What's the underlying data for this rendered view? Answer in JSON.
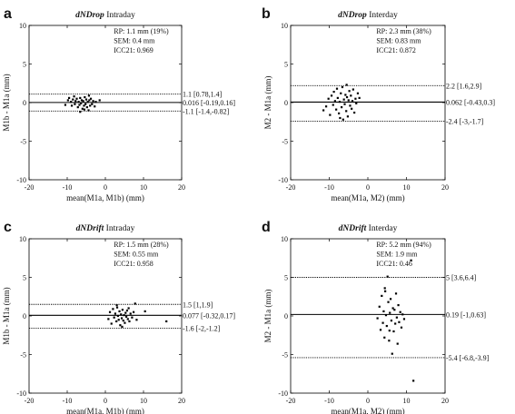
{
  "chart_data": [
    {
      "type": "scatter",
      "panel_letter": "a",
      "title_italic": "dNDrop",
      "title_rest": "Intraday",
      "xlabel": "mean(M1a, M1b) (mm)",
      "ylabel": "M1b - M1a (mm)",
      "xlim": [
        -20,
        20
      ],
      "ylim": [
        -10,
        10
      ],
      "xticks": [
        -20,
        -10,
        0,
        10,
        20
      ],
      "yticks": [
        -10,
        -5,
        0,
        5,
        10
      ],
      "stats": [
        "RP: 1.1 mm (19%)",
        "SEM: 0.4 mm",
        "ICC21: 0.969"
      ],
      "lines": [
        {
          "y": 1.1,
          "label": "1.1 [0.78,1.4]",
          "style": "dotted"
        },
        {
          "y": 0.016,
          "label": "0.016 [-0.19,0.16]",
          "style": "solid"
        },
        {
          "y": -1.1,
          "label": "-1.1 [-1.4,-0.82]",
          "style": "dotted"
        }
      ],
      "points": [
        [
          -10.5,
          -0.3
        ],
        [
          -9.8,
          0.3
        ],
        [
          -9.5,
          0.6
        ],
        [
          -9.0,
          0.1
        ],
        [
          -8.8,
          -0.4
        ],
        [
          -8.5,
          0.4
        ],
        [
          -8.2,
          0.8
        ],
        [
          -8.0,
          -0.2
        ],
        [
          -7.8,
          0.2
        ],
        [
          -7.5,
          0.5
        ],
        [
          -7.2,
          -0.6
        ],
        [
          -7.0,
          0.1
        ],
        [
          -6.8,
          -0.3
        ],
        [
          -6.6,
          0.6
        ],
        [
          -6.4,
          -0.1
        ],
        [
          -6.2,
          0.3
        ],
        [
          -6.0,
          -0.8
        ],
        [
          -5.8,
          0.2
        ],
        [
          -5.6,
          -0.4
        ],
        [
          -5.4,
          0.7
        ],
        [
          -5.2,
          -0.2
        ],
        [
          -5.0,
          0.4
        ],
        [
          -4.8,
          -0.6
        ],
        [
          -4.6,
          0.1
        ],
        [
          -4.4,
          -1.0
        ],
        [
          -4.2,
          0.3
        ],
        [
          -4.0,
          -0.4
        ],
        [
          -3.8,
          0.5
        ],
        [
          -3.5,
          -0.2
        ],
        [
          -3.2,
          0.2
        ],
        [
          -2.8,
          -0.5
        ],
        [
          -2.5,
          0.1
        ],
        [
          -1.5,
          0.3
        ],
        [
          -6.6,
          -1.2
        ],
        [
          -5.5,
          -0.9
        ],
        [
          -4.3,
          0.9
        ]
      ]
    },
    {
      "type": "scatter",
      "panel_letter": "b",
      "title_italic": "dNDrop",
      "title_rest": "Interday",
      "xlabel": "mean(M1a, M2) (mm)",
      "ylabel": "M2 - M1a (mm)",
      "xlim": [
        -20,
        20
      ],
      "ylim": [
        -10,
        10
      ],
      "xticks": [
        -20,
        -10,
        0,
        10,
        20
      ],
      "yticks": [
        -10,
        -5,
        0,
        5,
        10
      ],
      "stats": [
        "RP: 2.3 mm (38%)",
        "SEM: 0.83 mm",
        "ICC21: 0.872"
      ],
      "lines": [
        {
          "y": 2.2,
          "label": "2.2 [1.6,2.9]",
          "style": "dotted"
        },
        {
          "y": 0.062,
          "label": "0.062 [-0.43,0.3]",
          "style": "solid"
        },
        {
          "y": -2.4,
          "label": "-2.4 [-3,-1.7]",
          "style": "dotted"
        }
      ],
      "points": [
        [
          -11.5,
          -1.0
        ],
        [
          -10.8,
          -0.5
        ],
        [
          -10.2,
          0.5
        ],
        [
          -9.8,
          -1.6
        ],
        [
          -9.4,
          0.9
        ],
        [
          -9.0,
          -0.3
        ],
        [
          -8.8,
          1.4
        ],
        [
          -8.5,
          0.2
        ],
        [
          -8.2,
          -0.9
        ],
        [
          -8.0,
          1.8
        ],
        [
          -7.8,
          0.6
        ],
        [
          -7.5,
          -1.4
        ],
        [
          -7.3,
          0.1
        ],
        [
          -7.0,
          1.2
        ],
        [
          -6.8,
          -0.6
        ],
        [
          -6.6,
          2.0
        ],
        [
          -6.4,
          -2.2
        ],
        [
          -6.2,
          0.4
        ],
        [
          -6.0,
          -0.2
        ],
        [
          -5.8,
          1.0
        ],
        [
          -5.6,
          -1.1
        ],
        [
          -5.4,
          0.7
        ],
        [
          -5.2,
          -1.8
        ],
        [
          -5.0,
          0.3
        ],
        [
          -4.8,
          1.5
        ],
        [
          -4.6,
          -0.4
        ],
        [
          -4.4,
          0.9
        ],
        [
          -4.2,
          -0.8
        ],
        [
          -4.0,
          0.2
        ],
        [
          -3.8,
          1.7
        ],
        [
          -3.5,
          -1.3
        ],
        [
          -3.2,
          0.5
        ],
        [
          -3.0,
          -0.1
        ],
        [
          -2.6,
          1.2
        ],
        [
          -2.2,
          0.6
        ],
        [
          -7.2,
          -2.0
        ],
        [
          -5.5,
          2.3
        ]
      ]
    },
    {
      "type": "scatter",
      "panel_letter": "c",
      "title_italic": "dNDrift",
      "title_rest": "Intraday",
      "xlabel": "mean(M1a, M1b) (mm)",
      "ylabel": "M1b - M1a (mm)",
      "xlim": [
        -20,
        20
      ],
      "ylim": [
        -10,
        10
      ],
      "xticks": [
        -20,
        -10,
        0,
        10,
        20
      ],
      "yticks": [
        -10,
        -5,
        0,
        5,
        10
      ],
      "stats": [
        "RP: 1.5 mm (28%)",
        "SEM: 0.55 mm",
        "ICC21: 0.958"
      ],
      "lines": [
        {
          "y": 1.5,
          "label": "1.5 [1,1.9]",
          "style": "dotted"
        },
        {
          "y": 0.077,
          "label": "0.077 [-0.32,0.17]",
          "style": "solid"
        },
        {
          "y": -1.6,
          "label": "-1.6 [-2,-1.2]",
          "style": "dotted"
        }
      ],
      "points": [
        [
          0.8,
          -0.4
        ],
        [
          1.2,
          0.5
        ],
        [
          1.6,
          -1.0
        ],
        [
          2.0,
          0.9
        ],
        [
          2.3,
          -0.2
        ],
        [
          2.6,
          0.3
        ],
        [
          2.9,
          -0.7
        ],
        [
          3.1,
          1.1
        ],
        [
          3.3,
          0.0
        ],
        [
          3.5,
          -0.5
        ],
        [
          3.7,
          0.6
        ],
        [
          3.9,
          -1.2
        ],
        [
          4.1,
          0.2
        ],
        [
          4.3,
          -0.3
        ],
        [
          4.5,
          0.8
        ],
        [
          4.7,
          -0.6
        ],
        [
          4.9,
          0.1
        ],
        [
          5.1,
          -0.9
        ],
        [
          5.3,
          0.4
        ],
        [
          5.5,
          -0.1
        ],
        [
          5.7,
          0.7
        ],
        [
          5.9,
          -0.4
        ],
        [
          6.1,
          1.0
        ],
        [
          6.3,
          -0.7
        ],
        [
          6.6,
          0.3
        ],
        [
          7.0,
          -0.2
        ],
        [
          7.4,
          0.5
        ],
        [
          7.8,
          1.6
        ],
        [
          8.2,
          -0.5
        ],
        [
          10.4,
          0.6
        ],
        [
          16.0,
          -0.7
        ],
        [
          3.0,
          1.4
        ],
        [
          4.4,
          -1.4
        ]
      ]
    },
    {
      "type": "scatter",
      "panel_letter": "d",
      "title_italic": "dNDrift",
      "title_rest": "Interday",
      "xlabel": "mean(M1a, M2) (mm)",
      "ylabel": "M2 - M1a (mm)",
      "xlim": [
        -20,
        20
      ],
      "ylim": [
        -10,
        10
      ],
      "xticks": [
        -20,
        -10,
        0,
        10,
        20
      ],
      "yticks": [
        -10,
        -5,
        0,
        5,
        10
      ],
      "stats": [
        "RP: 5.2 mm (94%)",
        "SEM: 1.9 mm",
        "ICC21: 0.46"
      ],
      "lines": [
        {
          "y": 5.0,
          "label": "5 [3.6,6.4]",
          "style": "dotted"
        },
        {
          "y": 0.19,
          "label": "0.19 [-1,0.63]",
          "style": "solid"
        },
        {
          "y": -5.4,
          "label": "-5.4 [-6.8,-3.9]",
          "style": "dotted"
        }
      ],
      "points": [
        [
          2.5,
          -0.3
        ],
        [
          3.0,
          1.2
        ],
        [
          3.3,
          -1.8
        ],
        [
          3.6,
          2.6
        ],
        [
          3.9,
          -0.9
        ],
        [
          4.1,
          0.6
        ],
        [
          4.3,
          -2.8
        ],
        [
          4.5,
          3.2
        ],
        [
          4.7,
          0.1
        ],
        [
          4.9,
          -1.3
        ],
        [
          5.1,
          5.1
        ],
        [
          5.3,
          1.8
        ],
        [
          5.5,
          -3.2
        ],
        [
          5.7,
          0.4
        ],
        [
          5.9,
          2.2
        ],
        [
          6.1,
          -0.6
        ],
        [
          6.3,
          -4.9
        ],
        [
          6.5,
          1.0
        ],
        [
          6.7,
          -2.0
        ],
        [
          6.9,
          0.8
        ],
        [
          7.1,
          -1.0
        ],
        [
          7.3,
          2.9
        ],
        [
          7.5,
          -0.2
        ],
        [
          7.7,
          -3.6
        ],
        [
          7.9,
          1.4
        ],
        [
          8.1,
          -0.8
        ],
        [
          8.4,
          0.5
        ],
        [
          8.7,
          -1.5
        ],
        [
          9.0,
          0.2
        ],
        [
          9.4,
          -0.4
        ],
        [
          4.4,
          3.6
        ],
        [
          5.6,
          -1.9
        ],
        [
          11.2,
          7.2
        ],
        [
          11.8,
          -8.4
        ]
      ]
    }
  ]
}
